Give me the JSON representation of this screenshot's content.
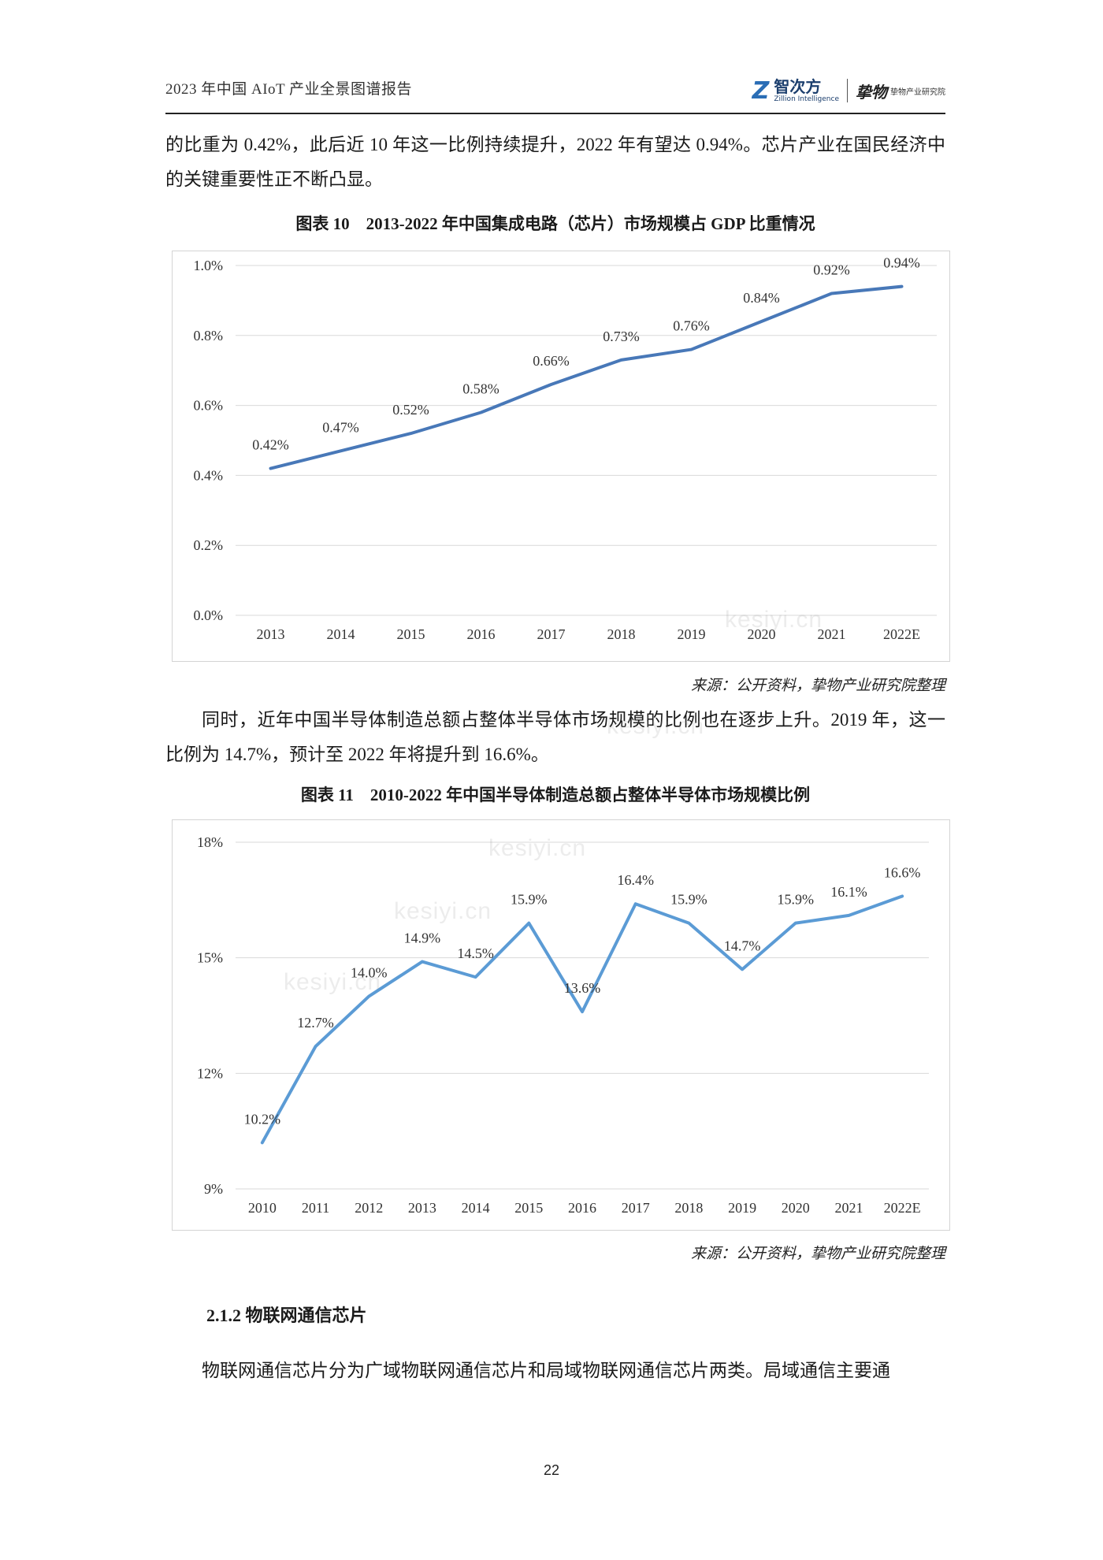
{
  "header": {
    "title": "2023 年中国 AIoT 产业全景图谱报告",
    "logo1_cn": "智次方",
    "logo1_en": "Zillion Intelligence",
    "logo2_text": "挚物产业研究院"
  },
  "para1": "的比重为 0.42%，此后近 10 年这一比例持续提升，2022 年有望达 0.94%。芯片产业在国民经济中的关键重要性正不断凸显。",
  "figure10": {
    "title": "图表 10　2013-2022 年中国集成电路（芯片）市场规模占 GDP 比重情况",
    "source": "来源：公开资料，挚物产业研究院整理",
    "chart_data": {
      "type": "line",
      "categories": [
        "2013",
        "2014",
        "2015",
        "2016",
        "2017",
        "2018",
        "2019",
        "2020",
        "2021",
        "2022E"
      ],
      "values": [
        0.42,
        0.47,
        0.52,
        0.58,
        0.66,
        0.73,
        0.76,
        0.84,
        0.92,
        0.94
      ],
      "data_labels": [
        "0.42%",
        "0.47%",
        "0.52%",
        "0.58%",
        "0.66%",
        "0.73%",
        "0.76%",
        "0.84%",
        "0.92%",
        "0.94%"
      ],
      "yticks": [
        "0.0%",
        "0.2%",
        "0.4%",
        "0.6%",
        "0.8%",
        "1.0%"
      ],
      "ylim": [
        0,
        1.0
      ],
      "unit": "%",
      "grid": true,
      "line_color": "#4878b8"
    }
  },
  "para2": "同时，近年中国半导体制造总额占整体半导体市场规模的比例也在逐步上升。2019 年，这一比例为 14.7%，预计至 2022 年将提升到 16.6%。",
  "figure11": {
    "title": "图表 11　2010-2022 年中国半导体制造总额占整体半导体市场规模比例",
    "source": "来源：公开资料，挚物产业研究院整理",
    "chart_data": {
      "type": "line",
      "categories": [
        "2010",
        "2011",
        "2012",
        "2013",
        "2014",
        "2015",
        "2016",
        "2017",
        "2018",
        "2019",
        "2020",
        "2021",
        "2022E"
      ],
      "values": [
        10.2,
        12.7,
        14.0,
        14.9,
        14.5,
        15.9,
        13.6,
        16.4,
        15.9,
        14.7,
        15.9,
        16.1,
        16.6
      ],
      "data_labels": [
        "10.2%",
        "12.7%",
        "14.0%",
        "14.9%",
        "14.5%",
        "15.9%",
        "13.6%",
        "16.4%",
        "15.9%",
        "14.7%",
        "15.9%",
        "16.1%",
        "16.6%"
      ],
      "yticks": [
        "9%",
        "12%",
        "15%",
        "18%"
      ],
      "ylim": [
        9,
        18
      ],
      "unit": "%",
      "grid": true,
      "line_color": "#5b9bd5"
    }
  },
  "section": {
    "title": "2.1.2  物联网通信芯片"
  },
  "para3": "物联网通信芯片分为广域物联网通信芯片和局域物联网通信芯片两类。局域通信主要通",
  "page_number": "22",
  "watermark_text": "kesiyi.cn"
}
